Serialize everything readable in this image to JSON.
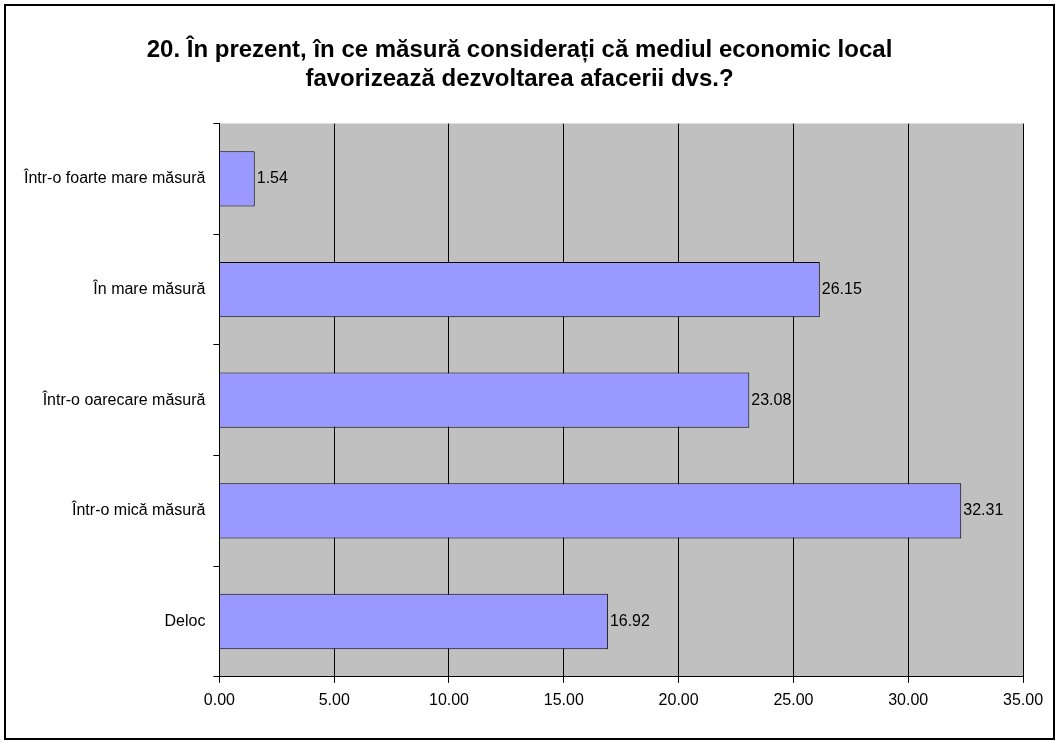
{
  "chart_data": {
    "type": "bar",
    "orientation": "horizontal",
    "title": "20. În prezent, în ce măsură considerați că mediul economic local favorizează dezvoltarea afacerii dvs.?",
    "categories": [
      "Într-o foarte mare măsură",
      "În mare măsură",
      "Într-o oarecare măsură",
      "Într-o mică măsură",
      "Deloc"
    ],
    "values": [
      1.54,
      26.15,
      23.08,
      32.31,
      16.92
    ],
    "color": "#9999ff",
    "xlim": [
      0,
      35
    ],
    "xticks": [
      {
        "value": 0,
        "label": "0.00"
      },
      {
        "value": 5,
        "label": "5.00"
      },
      {
        "value": 10,
        "label": "10.00"
      },
      {
        "value": 15,
        "label": "15.00"
      },
      {
        "value": 20,
        "label": "20.00"
      },
      {
        "value": 25,
        "label": "25.00"
      },
      {
        "value": 30,
        "label": "30.00"
      },
      {
        "value": 35,
        "label": "35.00"
      }
    ],
    "grid": "x",
    "data_labels": true
  }
}
